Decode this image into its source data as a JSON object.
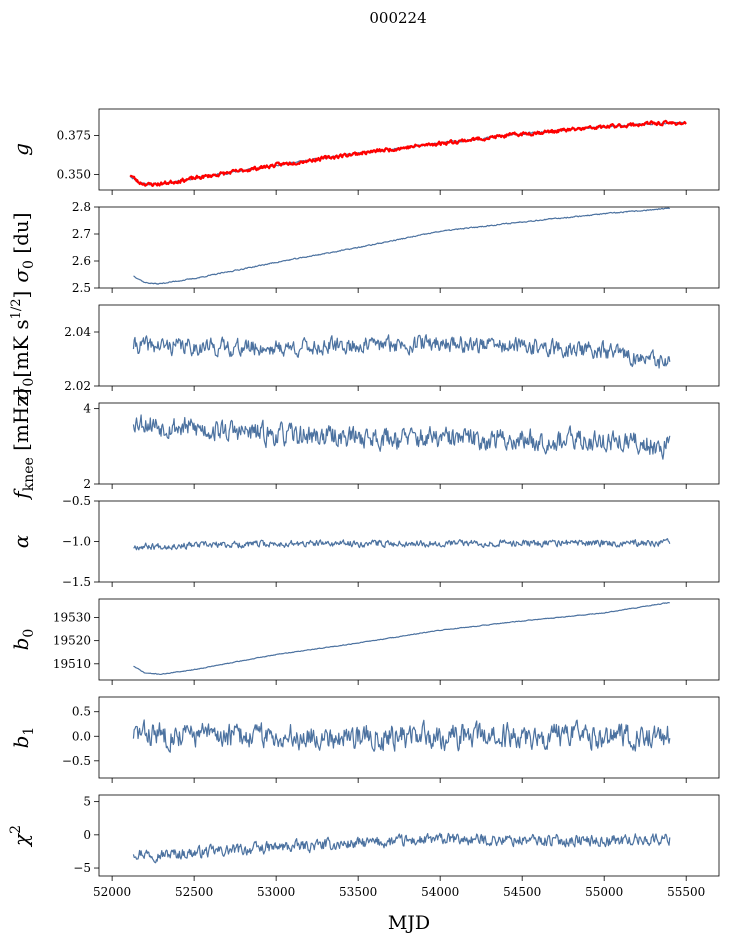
{
  "figure": {
    "title": "000224",
    "xlabel": "MJD"
  },
  "colors": {
    "series": "#4c72a0",
    "fit": "#ff0000",
    "frame": "#000000"
  },
  "chart_data": [
    {
      "type": "line",
      "id": "g",
      "ylabel": "g",
      "ylabel_italic": true,
      "ylim": [
        0.34,
        0.392
      ],
      "yticks": [
        0.35,
        0.375
      ],
      "yticklabels": [
        "0.350",
        "0.375"
      ],
      "xlim": [
        51920,
        55700
      ],
      "series": [
        {
          "style": "data",
          "noise": 0.0006,
          "seed": 11,
          "points": [
            [
              52110,
              0.349
            ],
            [
              52160,
              0.345
            ],
            [
              52220,
              0.3438
            ],
            [
              52300,
              0.344
            ],
            [
              52500,
              0.3475
            ],
            [
              53000,
              0.356
            ],
            [
              53500,
              0.3635
            ],
            [
              54000,
              0.37
            ],
            [
              54500,
              0.376
            ],
            [
              55000,
              0.3805
            ],
            [
              55300,
              0.3825
            ],
            [
              55500,
              0.383
            ]
          ]
        },
        {
          "style": "fit",
          "noise": 0.0012,
          "seed": 23,
          "points": [
            [
              52110,
              0.35
            ],
            [
              52160,
              0.345
            ],
            [
              52220,
              0.3435
            ],
            [
              52300,
              0.344
            ],
            [
              52500,
              0.3475
            ],
            [
              53000,
              0.356
            ],
            [
              53500,
              0.3635
            ],
            [
              54000,
              0.37
            ],
            [
              54500,
              0.376
            ],
            [
              55000,
              0.3805
            ],
            [
              55300,
              0.3828
            ],
            [
              55500,
              0.383
            ]
          ]
        }
      ]
    },
    {
      "type": "line",
      "id": "sigma0-du",
      "ylabel": "σ0 [du]",
      "ylim": [
        2.5,
        2.8
      ],
      "yticks": [
        2.5,
        2.6,
        2.7,
        2.8
      ],
      "yticklabels": [
        "2.5",
        "2.6",
        "2.7",
        "2.8"
      ],
      "xlim": [
        51920,
        55700
      ],
      "series": [
        {
          "style": "data",
          "noise": 0.002,
          "seed": 37,
          "points": [
            [
              52130,
              2.545
            ],
            [
              52200,
              2.52
            ],
            [
              52280,
              2.515
            ],
            [
              52500,
              2.535
            ],
            [
              53000,
              2.595
            ],
            [
              53500,
              2.65
            ],
            [
              54000,
              2.71
            ],
            [
              54500,
              2.745
            ],
            [
              55000,
              2.775
            ],
            [
              55400,
              2.795
            ]
          ]
        }
      ]
    },
    {
      "type": "line",
      "id": "sigma0-mk",
      "ylabel": "σ0[mK s^1/2]",
      "ylim": [
        2.02,
        2.05
      ],
      "yticks": [
        2.02,
        2.04
      ],
      "yticklabels": [
        "2.02",
        "2.04"
      ],
      "xlim": [
        51920,
        55700
      ],
      "series": [
        {
          "style": "data",
          "noise": 0.003,
          "seed": 41,
          "points": [
            [
              52130,
              2.035
            ],
            [
              53000,
              2.034
            ],
            [
              54000,
              2.036
            ],
            [
              55000,
              2.033
            ],
            [
              55400,
              2.028
            ]
          ]
        }
      ]
    },
    {
      "type": "line",
      "id": "fknee",
      "ylabel": "fknee [mHz]",
      "ylim": [
        2.0,
        4.15
      ],
      "yticks": [
        2,
        4
      ],
      "yticklabels": [
        "2",
        "4"
      ],
      "xlim": [
        51920,
        55700
      ],
      "series": [
        {
          "style": "data",
          "noise": 0.28,
          "seed": 53,
          "points": [
            [
              52130,
              3.7
            ],
            [
              52300,
              3.55
            ],
            [
              53000,
              3.3
            ],
            [
              54000,
              3.2
            ],
            [
              55000,
              3.15
            ],
            [
              55400,
              3.0
            ]
          ]
        }
      ]
    },
    {
      "type": "line",
      "id": "alpha",
      "ylabel": "α",
      "ylabel_italic": true,
      "ylim": [
        -1.5,
        -0.5
      ],
      "yticks": [
        -1.5,
        -1.0,
        -0.5
      ],
      "yticklabels": [
        "−1.5",
        "−1.0",
        "−0.5"
      ],
      "xlim": [
        51920,
        55700
      ],
      "series": [
        {
          "style": "data",
          "noise": 0.04,
          "seed": 67,
          "points": [
            [
              52130,
              -1.06
            ],
            [
              53000,
              -1.03
            ],
            [
              54000,
              -1.02
            ],
            [
              55000,
              -1.02
            ],
            [
              55400,
              -1.02
            ]
          ]
        }
      ]
    },
    {
      "type": "line",
      "id": "b0",
      "ylabel": "b0",
      "ylabel_italic": true,
      "ylim": [
        19503,
        19538
      ],
      "yticks": [
        19510,
        19520,
        19530
      ],
      "yticklabels": [
        "19510",
        "19520",
        "19530"
      ],
      "xlim": [
        51920,
        55700
      ],
      "series": [
        {
          "style": "data",
          "noise": 0.15,
          "seed": 71,
          "points": [
            [
              52130,
              19509
            ],
            [
              52200,
              19506
            ],
            [
              52300,
              19505.5
            ],
            [
              52500,
              19507.5
            ],
            [
              53000,
              19514
            ],
            [
              53500,
              19519
            ],
            [
              54000,
              19524.5
            ],
            [
              54500,
              19528.5
            ],
            [
              55000,
              19532
            ],
            [
              55400,
              19536.5
            ]
          ]
        }
      ]
    },
    {
      "type": "line",
      "id": "b1",
      "ylabel": "b1",
      "ylabel_italic": true,
      "ylim": [
        -0.85,
        0.8
      ],
      "yticks": [
        -0.5,
        0.0,
        0.5
      ],
      "yticklabels": [
        "−0.5",
        "0.0",
        "0.5"
      ],
      "xlim": [
        51920,
        55700
      ],
      "series": [
        {
          "style": "data",
          "noise": 0.24,
          "seed": 83,
          "points": [
            [
              52130,
              0.05
            ],
            [
              53000,
              0.0
            ],
            [
              54000,
              0.0
            ],
            [
              55000,
              0.0
            ],
            [
              55400,
              0.0
            ]
          ]
        }
      ]
    },
    {
      "type": "line",
      "id": "chi2",
      "ylabel": "χ2",
      "ylabel_italic": true,
      "ylim": [
        -6.2,
        6.0
      ],
      "yticks": [
        -5,
        0,
        5
      ],
      "yticklabels": [
        "−5",
        "0",
        "5"
      ],
      "xlim": [
        51920,
        55700
      ],
      "xticks": [
        52000,
        52500,
        53000,
        53500,
        54000,
        54500,
        55000,
        55500
      ],
      "xticklabels": [
        "52000",
        "52500",
        "53000",
        "53500",
        "54000",
        "54500",
        "55000",
        "55500"
      ],
      "series": [
        {
          "style": "data",
          "noise": 0.85,
          "seed": 97,
          "points": [
            [
              52130,
              -2.6
            ],
            [
              52300,
              -3.0
            ],
            [
              53000,
              -1.9
            ],
            [
              54000,
              -0.7
            ],
            [
              55000,
              -0.9
            ],
            [
              55400,
              -0.6
            ]
          ]
        }
      ]
    }
  ]
}
